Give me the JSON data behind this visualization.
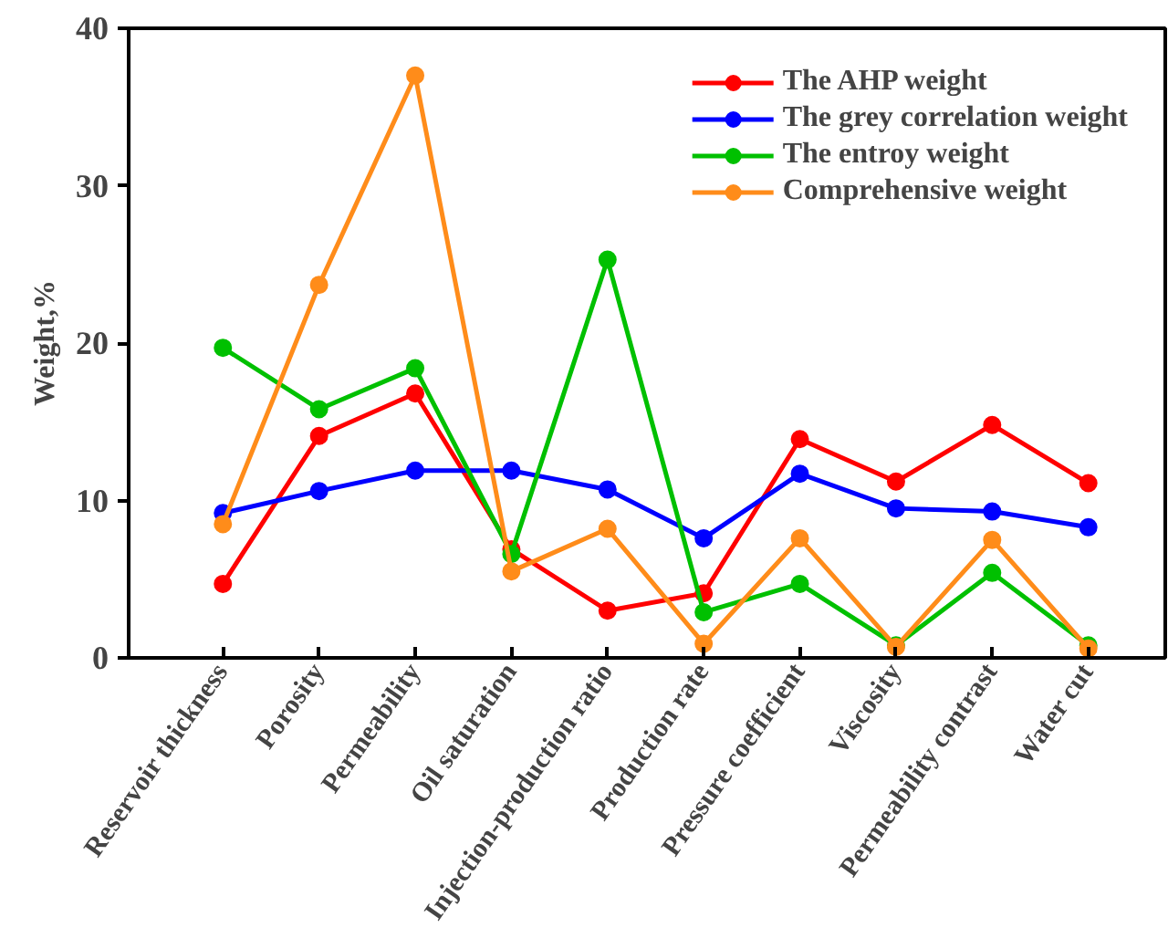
{
  "chart_data": {
    "type": "line",
    "ylabel": "Weight,%",
    "categories": [
      "Reservoir thickness",
      "Porosity",
      "Permeability",
      "Oil saturation",
      "Injection-production ratio",
      "Production rate",
      "Pressure coefficient",
      "Viscosity",
      "Permeability contrast",
      "Water cut"
    ],
    "series": [
      {
        "name": "The AHP weight",
        "color": "#ff0000",
        "values": [
          4.7,
          14.1,
          16.8,
          6.9,
          3.0,
          4.1,
          13.9,
          11.2,
          14.8,
          11.1
        ]
      },
      {
        "name": "The grey correlation weight",
        "color": "#0000ff",
        "values": [
          9.2,
          10.6,
          11.9,
          11.9,
          10.7,
          7.6,
          11.7,
          9.5,
          9.3,
          8.3
        ]
      },
      {
        "name": "The entroy weight",
        "color": "#00c000",
        "values": [
          19.7,
          15.8,
          18.4,
          6.6,
          25.3,
          2.9,
          4.7,
          0.8,
          5.4,
          0.8
        ]
      },
      {
        "name": "Comprehensive weight",
        "color": "#ff8c1a",
        "values": [
          8.5,
          23.7,
          37.0,
          5.5,
          8.2,
          0.9,
          7.6,
          0.7,
          7.5,
          0.6
        ]
      }
    ],
    "ylim": [
      0,
      40
    ],
    "yticks": [
      0,
      10,
      20,
      30,
      40
    ],
    "grid": false,
    "legend": "top right",
    "marker": "circle",
    "line_style": "solid"
  }
}
